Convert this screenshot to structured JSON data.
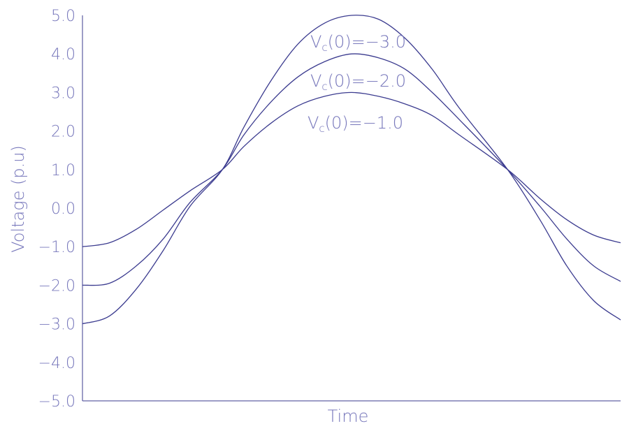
{
  "chart_data": {
    "type": "line",
    "xlabel": "Time",
    "ylabel": "Voltage (p.u)",
    "title": "",
    "xlim": [
      0,
      1
    ],
    "ylim": [
      -5.0,
      5.0
    ],
    "yticks": [
      "5.0",
      "4.0",
      "3.0",
      "2.0",
      "1.0",
      "0.0",
      "-1.0",
      "-2.0",
      "-3.0",
      "-4.0",
      "-5.0"
    ],
    "ytick_values": [
      5,
      4,
      3,
      2,
      1,
      0,
      -1,
      -2,
      -3,
      -4,
      -5
    ],
    "grid": false,
    "series": [
      {
        "name": "Vc(0)=-3.0",
        "x": [
          0,
          0.05,
          0.1,
          0.15,
          0.2,
          0.26,
          0.3,
          0.35,
          0.4,
          0.45,
          0.5,
          0.55,
          0.6,
          0.65,
          0.7,
          0.79,
          0.85,
          0.9,
          0.95,
          1.0
        ],
        "values": [
          -3.0,
          -2.8,
          -2.1,
          -1.1,
          0.05,
          1.0,
          2.1,
          3.3,
          4.25,
          4.8,
          5.0,
          4.9,
          4.4,
          3.6,
          2.6,
          1.0,
          -0.3,
          -1.5,
          -2.4,
          -2.9
        ]
      },
      {
        "name": "Vc(0)=-2.0",
        "x": [
          0,
          0.05,
          0.1,
          0.15,
          0.2,
          0.26,
          0.3,
          0.35,
          0.4,
          0.45,
          0.5,
          0.55,
          0.6,
          0.65,
          0.7,
          0.79,
          0.85,
          0.9,
          0.95,
          1.0
        ],
        "values": [
          -2.0,
          -1.95,
          -1.5,
          -0.8,
          0.15,
          1.0,
          1.9,
          2.75,
          3.4,
          3.8,
          4.0,
          3.9,
          3.6,
          3.0,
          2.3,
          1.0,
          0.05,
          -0.8,
          -1.5,
          -1.9
        ]
      },
      {
        "name": "Vc(0)=-1.0",
        "x": [
          0,
          0.05,
          0.1,
          0.15,
          0.2,
          0.26,
          0.3,
          0.35,
          0.4,
          0.45,
          0.5,
          0.55,
          0.6,
          0.65,
          0.7,
          0.79,
          0.85,
          0.9,
          0.95,
          1.0
        ],
        "values": [
          -1.0,
          -0.9,
          -0.55,
          -0.05,
          0.45,
          1.0,
          1.6,
          2.2,
          2.65,
          2.9,
          3.0,
          2.9,
          2.7,
          2.4,
          1.9,
          1.0,
          0.25,
          -0.3,
          -0.7,
          -0.9
        ]
      }
    ],
    "annotations": [
      {
        "main": "V",
        "sub": "c",
        "rest": "(0)=-3.0"
      },
      {
        "main": "V",
        "sub": "c",
        "rest": "(0)=-2.0"
      },
      {
        "main": "V",
        "sub": "c",
        "rest": "(0)=-1.0"
      }
    ]
  },
  "colors": {
    "line": "#3b3b8f",
    "text": "#7777bb",
    "axis": "#3b3b8f"
  }
}
